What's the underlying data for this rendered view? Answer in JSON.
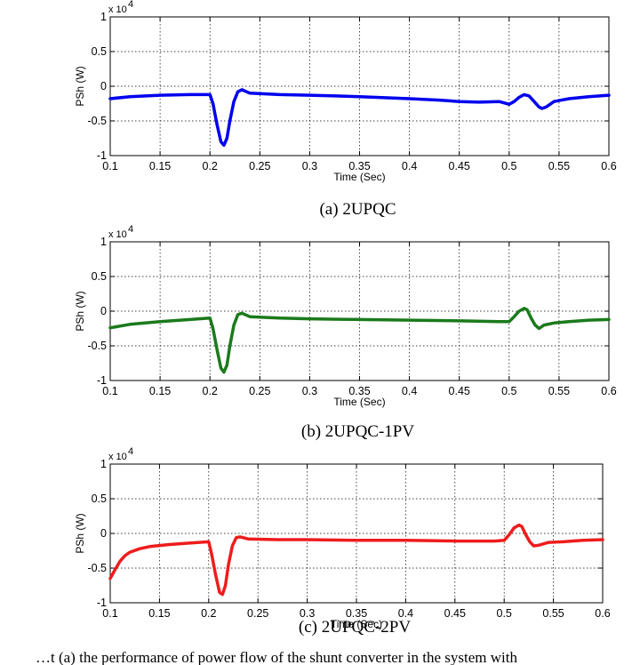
{
  "chart_data": [
    {
      "type": "line",
      "caption": "(a) 2UPQC",
      "xlabel": "Time (Sec)",
      "ylabel": "PSh (W)",
      "y_multiplier": "x 10",
      "y_exponent": "4",
      "xlim": [
        0.1,
        0.6
      ],
      "ylim": [
        -1,
        1
      ],
      "x_ticks": [
        "0.1",
        "0.15",
        "0.2",
        "0.25",
        "0.3",
        "0.35",
        "0.4",
        "0.45",
        "0.5",
        "0.55",
        "0.6"
      ],
      "y_ticks": [
        "-1",
        "-0.5",
        "0",
        "0.5",
        "1"
      ],
      "grid": true,
      "series": [
        {
          "color": "#0000ee",
          "x": [
            0.1,
            0.12,
            0.15,
            0.18,
            0.2,
            0.203,
            0.207,
            0.211,
            0.214,
            0.217,
            0.22,
            0.224,
            0.228,
            0.232,
            0.24,
            0.27,
            0.3,
            0.35,
            0.4,
            0.43,
            0.45,
            0.47,
            0.49,
            0.5,
            0.505,
            0.51,
            0.515,
            0.52,
            0.525,
            0.53,
            0.533,
            0.537,
            0.545,
            0.56,
            0.58,
            0.6
          ],
          "y": [
            -0.18,
            -0.15,
            -0.13,
            -0.12,
            -0.12,
            -0.25,
            -0.55,
            -0.8,
            -0.85,
            -0.75,
            -0.5,
            -0.22,
            -0.08,
            -0.05,
            -0.1,
            -0.12,
            -0.13,
            -0.15,
            -0.18,
            -0.2,
            -0.22,
            -0.23,
            -0.22,
            -0.26,
            -0.22,
            -0.16,
            -0.12,
            -0.14,
            -0.22,
            -0.3,
            -0.32,
            -0.3,
            -0.22,
            -0.18,
            -0.15,
            -0.13
          ]
        }
      ]
    },
    {
      "type": "line",
      "caption": "(b) 2UPQC-1PV",
      "xlabel": "Time (Sec)",
      "ylabel": "PSh (W)",
      "y_multiplier": "x 10",
      "y_exponent": "4",
      "xlim": [
        0.1,
        0.6
      ],
      "ylim": [
        -1,
        1
      ],
      "x_ticks": [
        "0.1",
        "0.15",
        "0.2",
        "0.25",
        "0.3",
        "0.35",
        "0.4",
        "0.45",
        "0.5",
        "0.55",
        "0.6"
      ],
      "y_ticks": [
        "-1",
        "-0.5",
        "0",
        "0.5",
        "1"
      ],
      "grid": true,
      "series": [
        {
          "color": "#1b7a1b",
          "x": [
            0.1,
            0.12,
            0.15,
            0.18,
            0.2,
            0.203,
            0.207,
            0.211,
            0.214,
            0.217,
            0.22,
            0.224,
            0.228,
            0.232,
            0.24,
            0.27,
            0.3,
            0.35,
            0.4,
            0.45,
            0.49,
            0.5,
            0.505,
            0.51,
            0.515,
            0.518,
            0.522,
            0.526,
            0.53,
            0.535,
            0.545,
            0.56,
            0.58,
            0.6
          ],
          "y": [
            -0.24,
            -0.19,
            -0.15,
            -0.12,
            -0.1,
            -0.25,
            -0.55,
            -0.82,
            -0.88,
            -0.78,
            -0.5,
            -0.2,
            -0.05,
            -0.03,
            -0.08,
            -0.1,
            -0.11,
            -0.12,
            -0.13,
            -0.14,
            -0.15,
            -0.15,
            -0.08,
            0.0,
            0.04,
            0.02,
            -0.1,
            -0.2,
            -0.25,
            -0.2,
            -0.17,
            -0.15,
            -0.13,
            -0.12
          ]
        }
      ]
    },
    {
      "type": "line",
      "caption": "(c) 2UPQC-2PV",
      "xlabel": "Time (Sec)",
      "ylabel": "PSh (W)",
      "y_multiplier": "x 10",
      "y_exponent": "4",
      "xlim": [
        0.1,
        0.6
      ],
      "ylim": [
        -1,
        1
      ],
      "x_ticks": [
        "0.1",
        "0.15",
        "0.2",
        "0.25",
        "0.3",
        "0.35",
        "0.4",
        "0.45",
        "0.5",
        "0.55",
        "0.6"
      ],
      "y_ticks": [
        "-1",
        "-0.5",
        "0",
        "0.5",
        "1"
      ],
      "grid": true,
      "series": [
        {
          "color": "#ee1c1c",
          "x": [
            0.1,
            0.105,
            0.11,
            0.115,
            0.12,
            0.13,
            0.14,
            0.16,
            0.18,
            0.2,
            0.203,
            0.207,
            0.211,
            0.214,
            0.217,
            0.22,
            0.224,
            0.228,
            0.232,
            0.24,
            0.27,
            0.3,
            0.35,
            0.4,
            0.45,
            0.49,
            0.5,
            0.505,
            0.51,
            0.515,
            0.518,
            0.522,
            0.526,
            0.53,
            0.535,
            0.545,
            0.56,
            0.58,
            0.6
          ],
          "y": [
            -0.65,
            -0.52,
            -0.4,
            -0.32,
            -0.27,
            -0.22,
            -0.19,
            -0.16,
            -0.14,
            -0.12,
            -0.3,
            -0.6,
            -0.85,
            -0.88,
            -0.75,
            -0.45,
            -0.18,
            -0.06,
            -0.05,
            -0.08,
            -0.09,
            -0.09,
            -0.1,
            -0.1,
            -0.11,
            -0.11,
            -0.1,
            -0.02,
            0.08,
            0.12,
            0.1,
            -0.02,
            -0.12,
            -0.18,
            -0.17,
            -0.13,
            -0.12,
            -0.1,
            -0.09
          ]
        }
      ]
    }
  ],
  "footer_text": "…t (a) the performance of power flow of the shunt converter in the system with"
}
